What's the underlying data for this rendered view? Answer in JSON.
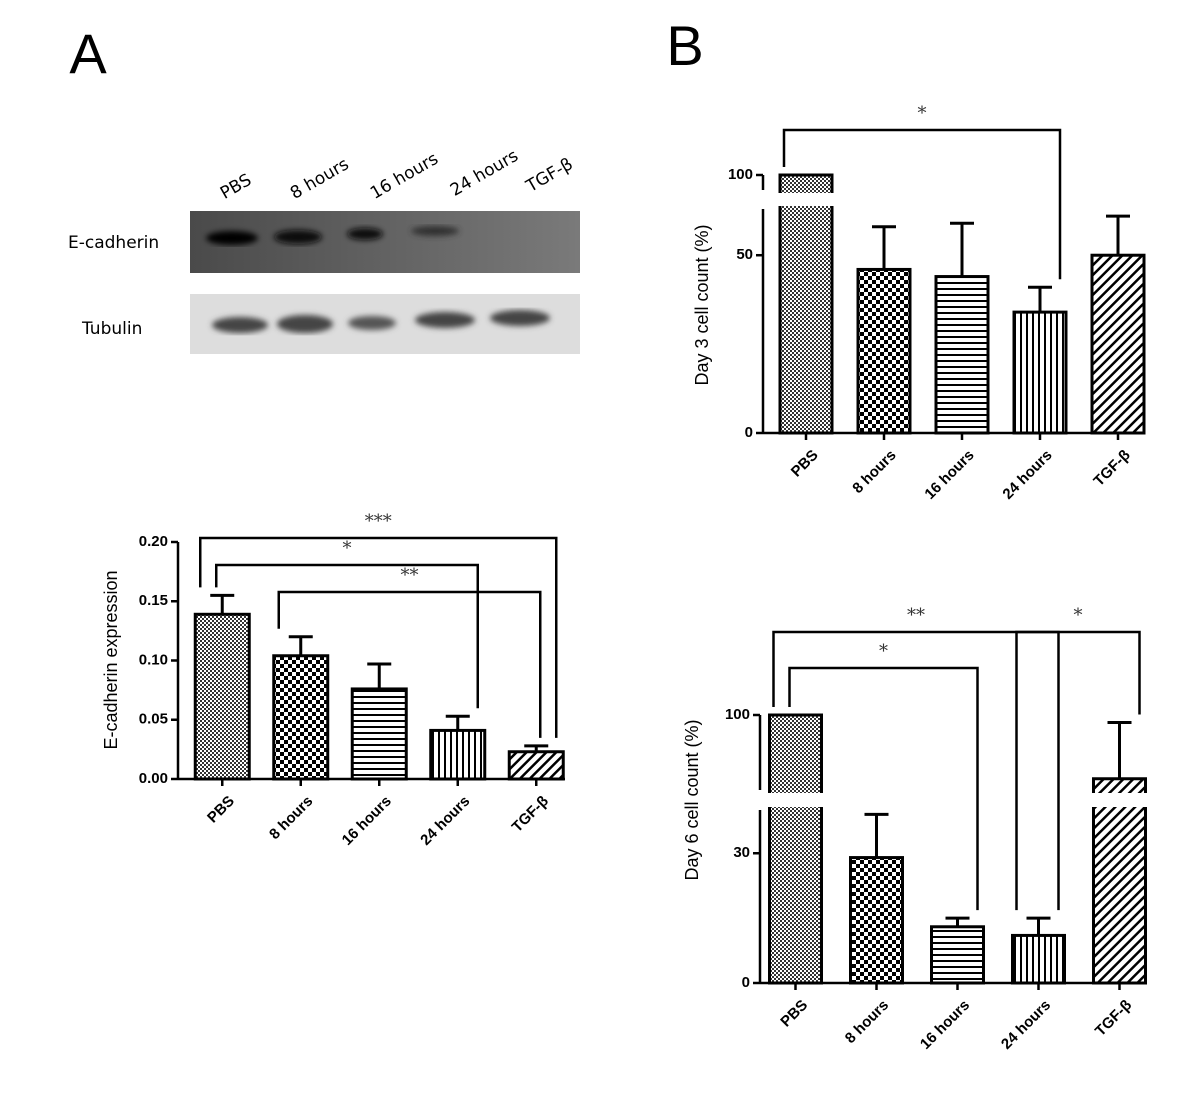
{
  "panels": [
    "A",
    "B"
  ],
  "blot": {
    "lanes": [
      "PBS",
      "8 hours",
      "16 hours",
      "24 hours",
      "TGF-β"
    ],
    "rows": [
      "E-cadherin",
      "Tubulin"
    ]
  },
  "chart_data": [
    {
      "type": "bar",
      "ylabel": "E-cadherin expression",
      "categories": [
        "PBS",
        "8 hours",
        "16 hours",
        "24 hours",
        "TGF-β"
      ],
      "values": [
        0.139,
        0.104,
        0.076,
        0.041,
        0.023
      ],
      "errors": [
        0.016,
        0.016,
        0.021,
        0.012,
        0.005
      ],
      "color": "#000000",
      "ylim": [
        0,
        0.2
      ],
      "yticks": [
        {
          "value": 0,
          "label": "0.00"
        },
        0.05,
        {
          "value": 0.1,
          "label": "0.10"
        },
        0.15,
        {
          "value": 0.2,
          "label": "0.20"
        }
      ],
      "significance": [
        {
          "from": 0,
          "to": 4,
          "label": "***"
        },
        {
          "from": 0,
          "to": 3,
          "label": "*"
        },
        {
          "from": 1,
          "to": 4,
          "label": "**"
        }
      ]
    },
    {
      "type": "bar",
      "ylabel": "Day 3 cell count (%)",
      "categories": [
        "PBS",
        "8 hours",
        "16 hours",
        "24 hours",
        "TGF-β"
      ],
      "values": [
        100,
        46,
        44,
        34,
        50
      ],
      "errors": [
        null,
        12,
        15,
        7,
        11
      ],
      "color": "#000000",
      "ylim": [
        0,
        100
      ],
      "ybreak": [
        63,
        95
      ],
      "yticks": [
        0,
        50,
        100
      ],
      "significance": [
        {
          "from": 0,
          "to": 3,
          "label": "*"
        }
      ]
    },
    {
      "type": "bar",
      "ylabel": "Day 6 cell count (%)",
      "categories": [
        "PBS",
        "8 hours",
        "16 hours",
        "24 hours",
        "TGF-β"
      ],
      "values": [
        100,
        29,
        13,
        11,
        83
      ],
      "errors": [
        null,
        10,
        2,
        4,
        15
      ],
      "color": "#000000",
      "ylim": [
        0,
        100
      ],
      "ybreak": [
        40,
        80
      ],
      "yticks": [
        0,
        30,
        100
      ],
      "significance": [
        {
          "from": 0,
          "to": 3,
          "label": "**"
        },
        {
          "from": 0,
          "to": 2,
          "label": "*"
        },
        {
          "from": 3,
          "to": 4,
          "label": "*"
        }
      ]
    }
  ]
}
